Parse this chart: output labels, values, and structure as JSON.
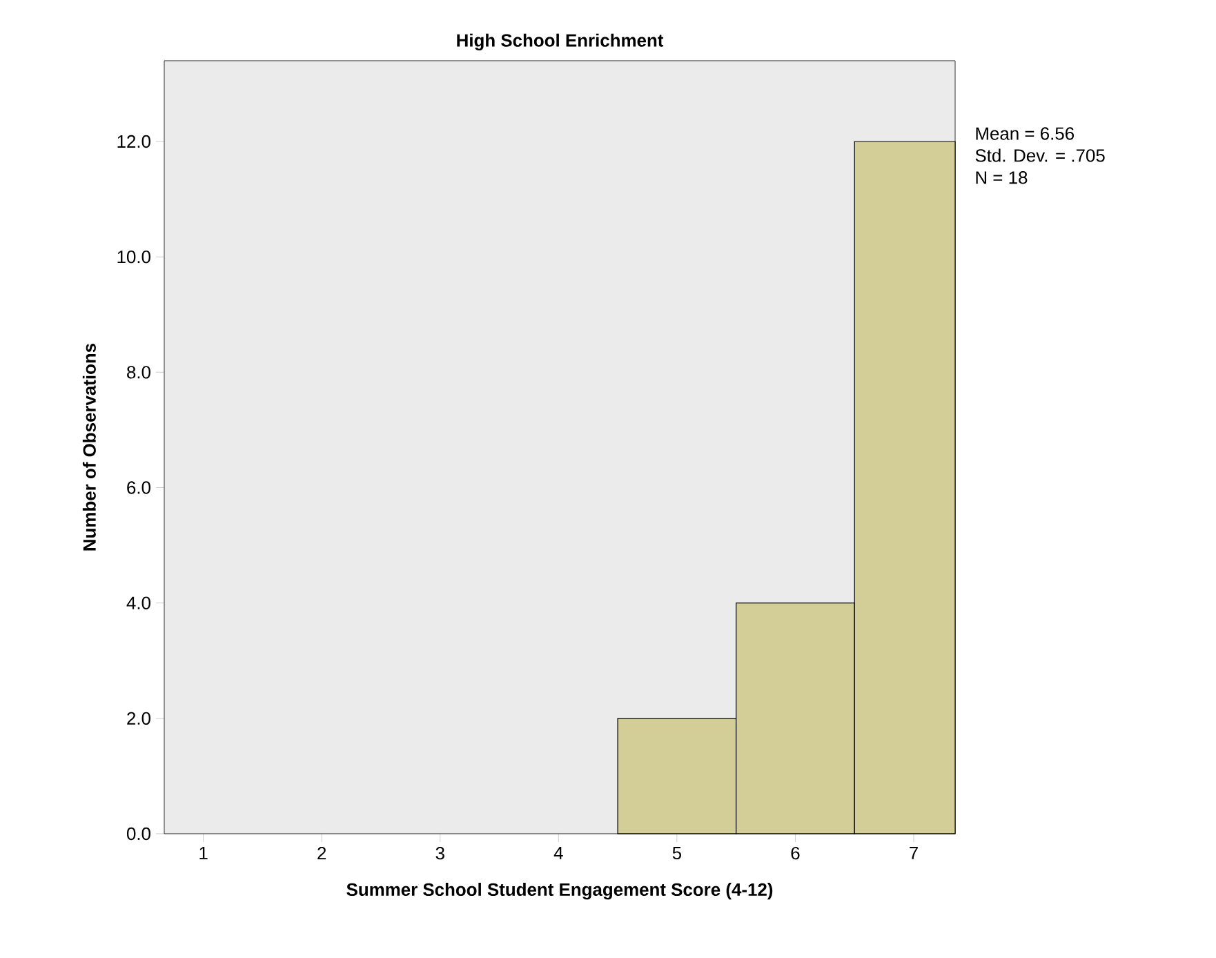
{
  "chart_data": {
    "type": "histogram",
    "title": "High School Enrichment",
    "xlabel": "Summer School Student Engagement Score (4-12)",
    "ylabel": "Number of Observations",
    "bins": [
      4.5,
      5.5,
      6.5,
      7.35
    ],
    "values": [
      2,
      4,
      12
    ],
    "color": "#d3ce97",
    "xlim": [
      0.67,
      7.35
    ],
    "xticks": [
      1,
      2,
      3,
      4,
      5,
      6,
      7
    ],
    "ylim": [
      0,
      13.4
    ],
    "yticks": [
      {
        "value": 0,
        "label": "0.0"
      },
      {
        "value": 2,
        "label": "2.0"
      },
      {
        "value": 4,
        "label": "4.0"
      },
      {
        "value": 6,
        "label": "6.0"
      },
      {
        "value": 8,
        "label": "8.0"
      },
      {
        "value": 10,
        "label": "10.0"
      },
      {
        "value": 12,
        "label": "12.0"
      }
    ],
    "annotations": [
      "Mean = 6.56",
      "Std. Dev. = .705",
      "N = 18"
    ]
  }
}
